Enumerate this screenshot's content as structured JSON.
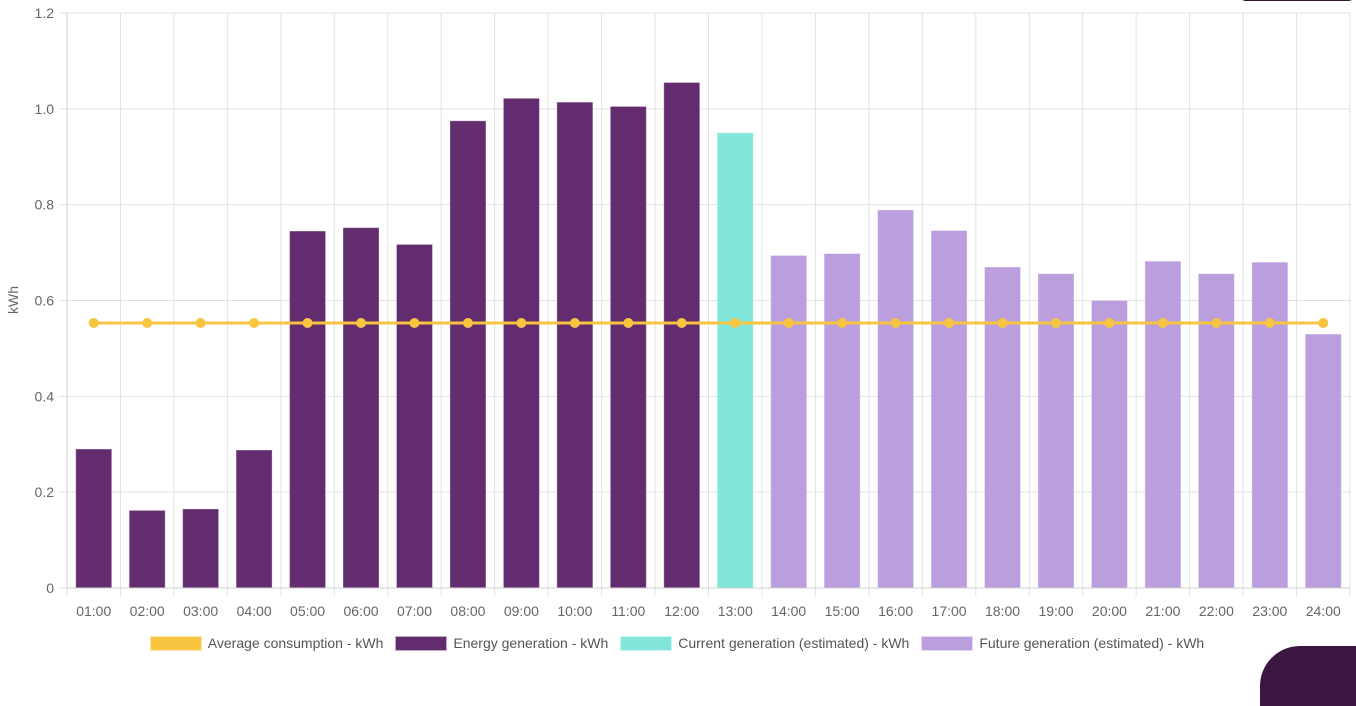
{
  "chart_data": {
    "type": "bar",
    "ylabel": "kWh",
    "ylim": [
      0,
      1.2
    ],
    "yticks": [
      0,
      0.2,
      0.4,
      0.6,
      0.8,
      1.0,
      1.2
    ],
    "ytick_labels": [
      "0",
      "0.2",
      "0.4",
      "0.6",
      "0.8",
      "1.0",
      "1.2"
    ],
    "grid": true,
    "legend_position": "bottom",
    "categories": [
      "01:00",
      "02:00",
      "03:00",
      "04:00",
      "05:00",
      "06:00",
      "07:00",
      "08:00",
      "09:00",
      "10:00",
      "11:00",
      "12:00",
      "13:00",
      "14:00",
      "15:00",
      "16:00",
      "17:00",
      "18:00",
      "19:00",
      "20:00",
      "21:00",
      "22:00",
      "23:00",
      "24:00"
    ],
    "series": [
      {
        "name": "Average consumption - kWh",
        "kind": "line",
        "color": "#f9c440",
        "values": [
          0.553,
          0.553,
          0.553,
          0.553,
          0.553,
          0.553,
          0.553,
          0.553,
          0.553,
          0.553,
          0.553,
          0.553,
          0.553,
          0.553,
          0.553,
          0.553,
          0.553,
          0.553,
          0.553,
          0.553,
          0.553,
          0.553,
          0.553,
          0.553
        ]
      },
      {
        "name": "Energy generation - kWh",
        "kind": "bar",
        "color": "#632c6e",
        "values": [
          0.29,
          0.162,
          0.165,
          0.288,
          0.745,
          0.752,
          0.717,
          0.975,
          1.022,
          1.014,
          1.005,
          1.055,
          null,
          null,
          null,
          null,
          null,
          null,
          null,
          null,
          null,
          null,
          null,
          null
        ]
      },
      {
        "name": "Current generation (estimated) - kWh",
        "kind": "bar",
        "color": "#82e6dc",
        "values": [
          null,
          null,
          null,
          null,
          null,
          null,
          null,
          null,
          null,
          null,
          null,
          null,
          0.95,
          null,
          null,
          null,
          null,
          null,
          null,
          null,
          null,
          null,
          null,
          null
        ]
      },
      {
        "name": "Future generation (estimated) - kWh",
        "kind": "bar",
        "color": "#bb9ede",
        "values": [
          null,
          null,
          null,
          null,
          null,
          null,
          null,
          null,
          null,
          null,
          null,
          null,
          null,
          0.694,
          0.698,
          0.789,
          0.746,
          0.67,
          0.656,
          0.6,
          0.682,
          0.656,
          0.68,
          0.53
        ]
      }
    ]
  }
}
